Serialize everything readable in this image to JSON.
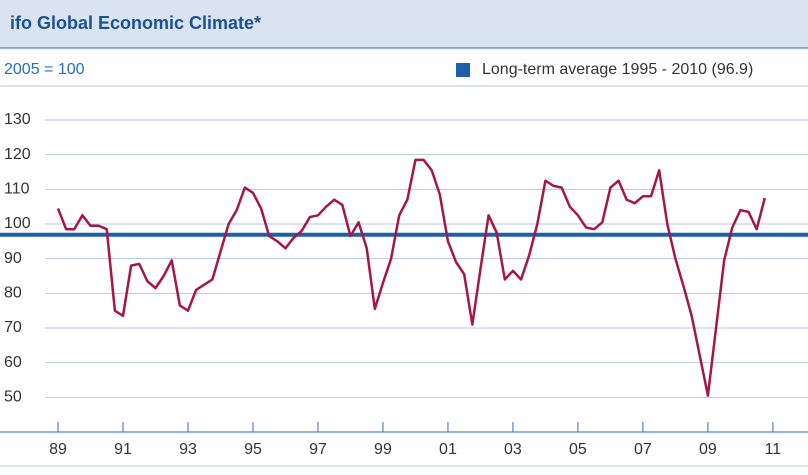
{
  "chart_data": {
    "type": "line",
    "title": "ifo Global Economic Climate*",
    "subtitle": "2005 = 100",
    "x": [
      1989,
      1989.25,
      1989.5,
      1989.75,
      1990,
      1990.25,
      1990.5,
      1990.75,
      1991,
      1991.25,
      1991.5,
      1991.75,
      1992,
      1992.25,
      1992.5,
      1992.75,
      1993,
      1993.25,
      1993.5,
      1993.75,
      1994,
      1994.25,
      1994.5,
      1994.75,
      1995,
      1995.25,
      1995.5,
      1995.75,
      1996,
      1996.25,
      1996.5,
      1996.75,
      1997,
      1997.25,
      1997.5,
      1997.75,
      1998,
      1998.25,
      1998.5,
      1998.75,
      1999,
      1999.25,
      1999.5,
      1999.75,
      2000,
      2000.25,
      2000.5,
      2000.75,
      2001,
      2001.25,
      2001.5,
      2001.75,
      2002,
      2002.25,
      2002.5,
      2002.75,
      2003,
      2003.25,
      2003.5,
      2003.75,
      2004,
      2004.25,
      2004.5,
      2004.75,
      2005,
      2005.25,
      2005.5,
      2005.75,
      2006,
      2006.25,
      2006.5,
      2006.75,
      2007,
      2007.25,
      2007.5,
      2007.75,
      2008,
      2008.25,
      2008.5,
      2008.75,
      2009,
      2009.25,
      2009.5,
      2009.75,
      2010,
      2010.25,
      2010.5,
      2010.75
    ],
    "series": [
      {
        "name": "ifo Global Economic Climate",
        "color": "#a3174a",
        "values": [
          104.5,
          98.5,
          98.5,
          102.5,
          99.5,
          99.5,
          98.5,
          75,
          73.5,
          88,
          88.5,
          83.5,
          81.5,
          85,
          89.5,
          76.5,
          75,
          81,
          82.5,
          84,
          92,
          100,
          104,
          110.5,
          109,
          104.5,
          96.5,
          95,
          93,
          96,
          98,
          102,
          102.5,
          105,
          107,
          105.5,
          96.5,
          100.5,
          93,
          75.5,
          83,
          90,
          102.5,
          107,
          118.5,
          118.5,
          115.5,
          108.5,
          95,
          89,
          85.5,
          71,
          87,
          102.5,
          97.5,
          84,
          86.5,
          84,
          91,
          100,
          112.5,
          111,
          110.5,
          105,
          102.5,
          99,
          98.5,
          100.5,
          110.5,
          112.5,
          107,
          106,
          108,
          108,
          115.5,
          100,
          90,
          82,
          73.5,
          62,
          50.5,
          70,
          89.5,
          99,
          104,
          103.5,
          98.5,
          107.5
        ]
      }
    ],
    "reference_line": {
      "label": "Long-term average 1995 - 2010 (96.9)",
      "value": 96.9,
      "color": "#1f5fa8"
    },
    "xlim": [
      1988.6,
      2012.08
    ],
    "xticks": [
      {
        "value": 1989,
        "label": "89"
      },
      {
        "value": 1991,
        "label": "91"
      },
      {
        "value": 1993,
        "label": "93"
      },
      {
        "value": 1995,
        "label": "95"
      },
      {
        "value": 1997,
        "label": "97"
      },
      {
        "value": 1999,
        "label": "99"
      },
      {
        "value": 2001,
        "label": "01"
      },
      {
        "value": 2003,
        "label": "03"
      },
      {
        "value": 2005,
        "label": "05"
      },
      {
        "value": 2007,
        "label": "07"
      },
      {
        "value": 2009,
        "label": "09"
      },
      {
        "value": 2011,
        "label": "11"
      }
    ],
    "ylim": [
      40,
      130
    ],
    "yticks": [
      50,
      60,
      70,
      80,
      90,
      100,
      110,
      120,
      130
    ],
    "grid": true
  }
}
